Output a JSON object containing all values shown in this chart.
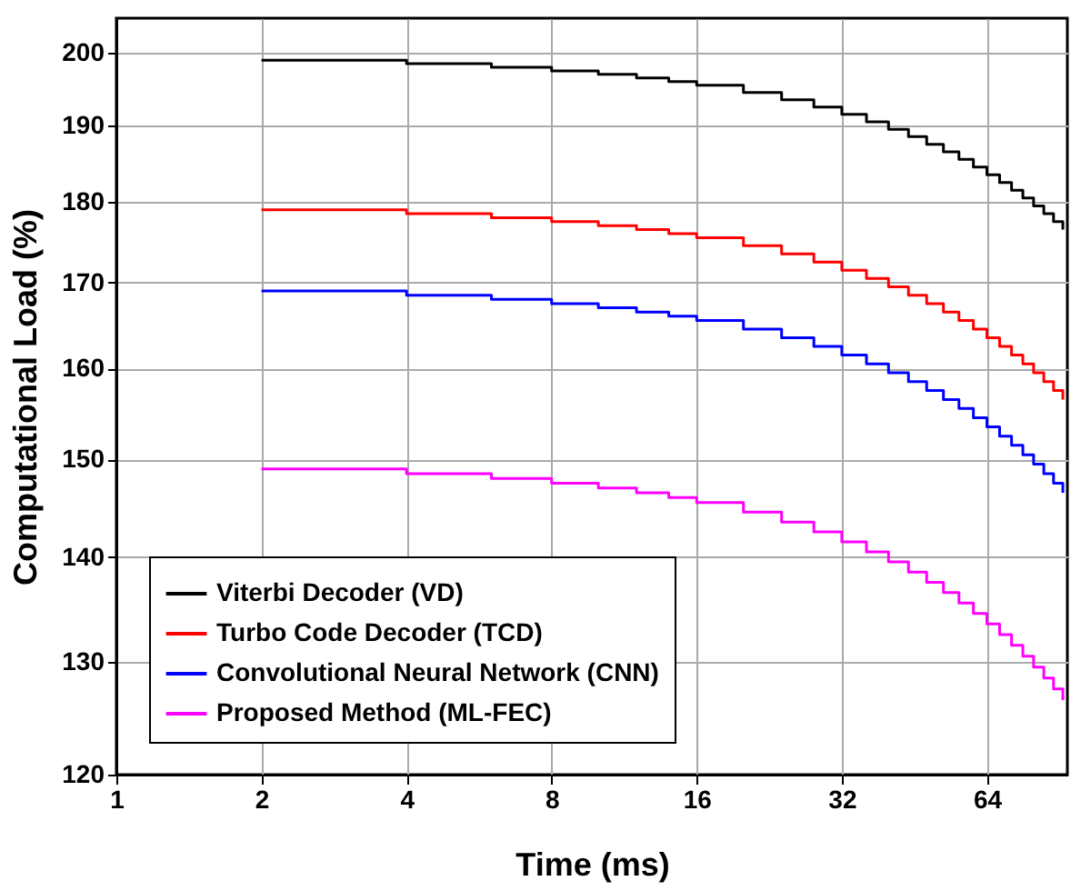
{
  "chart_data": {
    "type": "step",
    "xlabel": "Time (ms)",
    "ylabel": "Computational Load (%)",
    "x": [
      2,
      4,
      6,
      8,
      10,
      12,
      14,
      16,
      20,
      24,
      28,
      32,
      36,
      40,
      44,
      48,
      52,
      56,
      60,
      64,
      68,
      72,
      76,
      80,
      84,
      88,
      92
    ],
    "series": [
      {
        "name": "Viterbi Decoder (VD)",
        "color": "#000000",
        "values": [
          199,
          198.5,
          198,
          197.5,
          197,
          196.5,
          196,
          195.5,
          194.5,
          193.5,
          192.5,
          191.5,
          190.5,
          189.5,
          188.5,
          187.5,
          186.5,
          185.5,
          184.5,
          183.5,
          182.5,
          181.5,
          180.5,
          179.5,
          178.5,
          177.5,
          176.5
        ]
      },
      {
        "name": "Turbo Code Decoder (TCD)",
        "color": "#ff0000",
        "values": [
          179,
          178.5,
          178,
          177.5,
          177,
          176.5,
          176,
          175.5,
          174.5,
          173.5,
          172.5,
          171.5,
          170.5,
          169.5,
          168.5,
          167.5,
          166.5,
          165.5,
          164.5,
          163.5,
          162.5,
          161.5,
          160.5,
          159.5,
          158.5,
          157.5,
          156.5
        ]
      },
      {
        "name": "Convolutional Neural Network (CNN)",
        "color": "#0000ff",
        "values": [
          169,
          168.5,
          168,
          167.5,
          167,
          166.5,
          166,
          165.5,
          164.5,
          163.5,
          162.5,
          161.5,
          160.5,
          159.5,
          158.5,
          157.5,
          156.5,
          155.5,
          154.5,
          153.5,
          152.5,
          151.5,
          150.5,
          149.5,
          148.5,
          147.5,
          146.5
        ]
      },
      {
        "name": "Proposed Method (ML-FEC)",
        "color": "#ff00ff",
        "values": [
          149,
          148.5,
          148,
          147.5,
          147,
          146.5,
          146,
          145.5,
          144.5,
          143.5,
          142.5,
          141.5,
          140.5,
          139.5,
          138.5,
          137.5,
          136.5,
          135.5,
          134.5,
          133.5,
          132.5,
          131.5,
          130.5,
          129.5,
          128.5,
          127.5,
          126.5
        ]
      }
    ],
    "xlim": [
      1,
      94
    ],
    "xticks": [
      1,
      2,
      4,
      8,
      16,
      32,
      64
    ],
    "ylim": [
      120,
      205
    ],
    "yticks": [
      120,
      130,
      140,
      150,
      160,
      170,
      180,
      190,
      200
    ],
    "log": "xy",
    "grid": true,
    "legend": "bottom left",
    "line_style": "solid"
  }
}
